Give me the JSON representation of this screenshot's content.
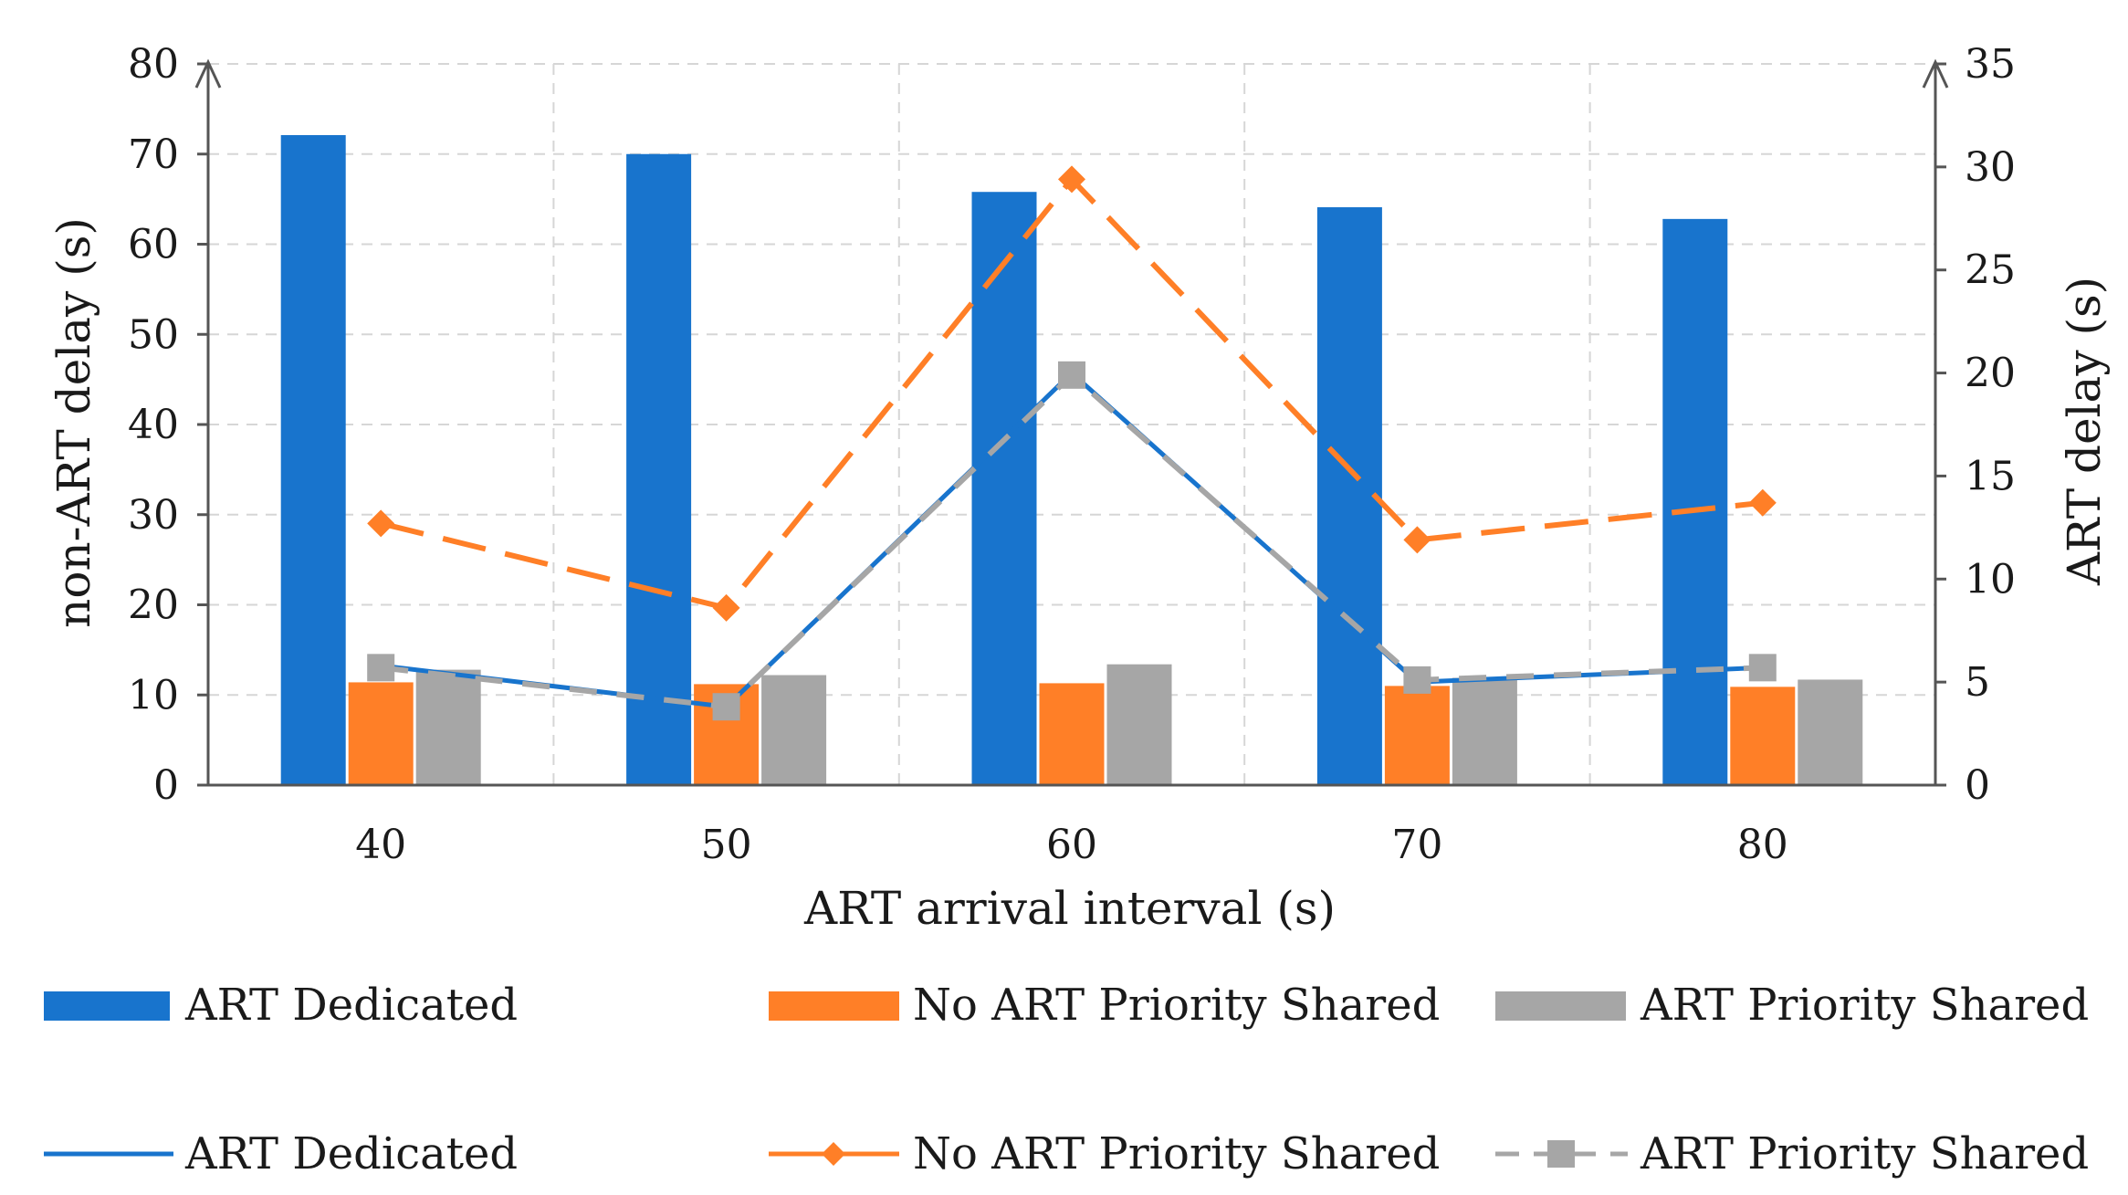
{
  "chart_data": {
    "type": "bar+line",
    "categories": [
      "40",
      "50",
      "60",
      "70",
      "80"
    ],
    "xlabel": "ART arrival interval (s)",
    "ylabel_left": "non-ART delay (s)",
    "ylabel_right": "ART delay (s)",
    "ylim_left": [
      0,
      80
    ],
    "ylim_right": [
      0,
      35
    ],
    "yticks_left": [
      "0",
      "10",
      "20",
      "30",
      "40",
      "50",
      "60",
      "70",
      "80"
    ],
    "yticks_right": [
      "0",
      "5",
      "10",
      "15",
      "20",
      "25",
      "30",
      "35"
    ],
    "grid": "dashed",
    "bar_series": [
      {
        "name": "ART Dedicated",
        "axis": "left",
        "color": "#1874cd",
        "values": [
          72.1,
          70.0,
          65.8,
          64.1,
          62.8
        ]
      },
      {
        "name": "No ART Priority Shared",
        "axis": "left",
        "color": "#ff7f27",
        "values": [
          11.4,
          11.2,
          11.3,
          11.0,
          10.9
        ]
      },
      {
        "name": "ART Priority Shared",
        "axis": "left",
        "color": "#a6a6a6",
        "values": [
          12.8,
          12.2,
          13.4,
          11.9,
          11.7
        ]
      }
    ],
    "line_series": [
      {
        "name": "ART Dedicated",
        "axis": "right",
        "color": "#1874cd",
        "style": "solid",
        "marker": "none",
        "values": [
          5.8,
          3.8,
          20.0,
          5.0,
          5.7
        ]
      },
      {
        "name": "No ART Priority Shared",
        "axis": "right",
        "color": "#ff7f27",
        "style": "dashed",
        "marker": "diamond",
        "values": [
          12.7,
          8.6,
          29.4,
          11.9,
          13.7
        ]
      },
      {
        "name": "ART Priority Shared",
        "axis": "right",
        "color": "#a6a6a6",
        "style": "dashed",
        "marker": "square",
        "values": [
          5.7,
          3.8,
          19.9,
          5.1,
          5.7
        ]
      }
    ],
    "legend_position": "bottom"
  }
}
